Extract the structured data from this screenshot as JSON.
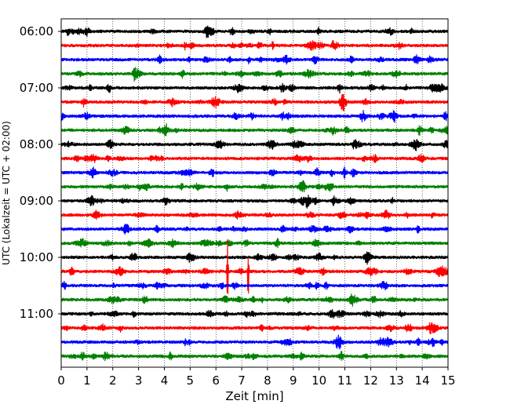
{
  "chart_data": {
    "type": "line",
    "title": "",
    "xlabel": "Zeit  [min]",
    "ylabel": "UTC (Lokalzeit = UTC + 02:00)",
    "xlim": [
      0,
      15
    ],
    "x_ticks": [
      0,
      1,
      2,
      3,
      4,
      5,
      6,
      7,
      8,
      9,
      10,
      11,
      12,
      13,
      14,
      15
    ],
    "grid_x": true,
    "grid_style": "dotted vertical",
    "y_tick_labels": [
      "06:00",
      "07:00",
      "08:00",
      "09:00",
      "10:00",
      "11:00"
    ],
    "row_interval_minutes": 15,
    "first_row": "06:00",
    "trace_colors_cycle": [
      "#000000",
      "#ff0000",
      "#0000ff",
      "#008000"
    ],
    "traces": [
      {
        "start": "06:00",
        "color": "#000000"
      },
      {
        "start": "06:15",
        "color": "#ff0000"
      },
      {
        "start": "06:30",
        "color": "#0000ff"
      },
      {
        "start": "06:45",
        "color": "#008000"
      },
      {
        "start": "07:00",
        "color": "#000000"
      },
      {
        "start": "07:15",
        "color": "#ff0000"
      },
      {
        "start": "07:30",
        "color": "#0000ff"
      },
      {
        "start": "07:45",
        "color": "#008000"
      },
      {
        "start": "08:00",
        "color": "#000000"
      },
      {
        "start": "08:15",
        "color": "#ff0000"
      },
      {
        "start": "08:30",
        "color": "#0000ff"
      },
      {
        "start": "08:45",
        "color": "#008000"
      },
      {
        "start": "09:00",
        "color": "#000000"
      },
      {
        "start": "09:15",
        "color": "#ff0000"
      },
      {
        "start": "09:30",
        "color": "#0000ff"
      },
      {
        "start": "09:45",
        "color": "#008000"
      },
      {
        "start": "10:00",
        "color": "#000000"
      },
      {
        "start": "10:15",
        "color": "#ff0000",
        "spikes": [
          {
            "minute": 6.45,
            "amplitude_rows": 2.4
          },
          {
            "minute": 7.25,
            "amplitude_rows": 2.5
          }
        ]
      },
      {
        "start": "10:30",
        "color": "#0000ff"
      },
      {
        "start": "10:45",
        "color": "#008000"
      },
      {
        "start": "11:00",
        "color": "#000000"
      },
      {
        "start": "11:15",
        "color": "#ff0000"
      },
      {
        "start": "11:30",
        "color": "#0000ff"
      },
      {
        "start": "11:45",
        "color": "#008000"
      }
    ]
  }
}
